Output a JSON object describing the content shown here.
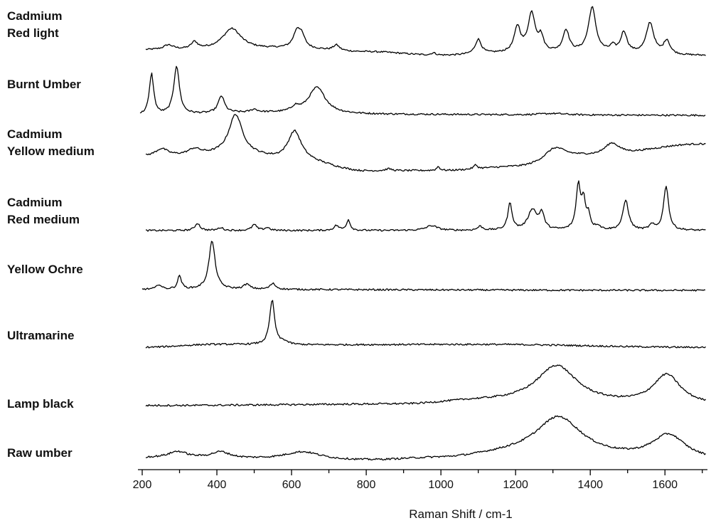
{
  "chart_data": {
    "type": "line",
    "title": "",
    "xlabel": "Raman Shift / cm-1",
    "ylabel": "",
    "xlim": [
      200,
      1710
    ],
    "xticks": [
      200,
      400,
      600,
      800,
      1000,
      1200,
      1400,
      1600
    ],
    "grid": false,
    "legend": "none",
    "series": [
      {
        "name": "Cadmium Red light",
        "label_lines": [
          "Cadmium",
          "Red light"
        ],
        "baseline": [
          [
            200,
            0.12
          ],
          [
            600,
            0.15
          ],
          [
            800,
            0.08
          ],
          [
            1000,
            0.0
          ],
          [
            1200,
            0.05
          ],
          [
            1400,
            0.06
          ],
          [
            1700,
            0.0
          ]
        ],
        "peaks": [
          [
            270,
            0.1,
            15
          ],
          [
            340,
            0.15,
            10
          ],
          [
            440,
            0.45,
            30
          ],
          [
            615,
            0.38,
            12
          ],
          [
            628,
            0.2,
            10
          ],
          [
            720,
            0.12,
            10
          ],
          [
            980,
            0.05,
            8
          ],
          [
            1100,
            0.32,
            10
          ],
          [
            1205,
            0.55,
            10
          ],
          [
            1243,
            0.85,
            12
          ],
          [
            1268,
            0.3,
            8
          ],
          [
            1335,
            0.48,
            10
          ],
          [
            1405,
            0.98,
            12
          ],
          [
            1460,
            0.12,
            8
          ],
          [
            1490,
            0.45,
            10
          ],
          [
            1560,
            0.68,
            12
          ],
          [
            1605,
            0.3,
            10
          ]
        ]
      },
      {
        "name": "Burnt Umber",
        "label_lines": [
          "Burnt Umber"
        ],
        "baseline": [
          [
            200,
            0.0
          ],
          [
            500,
            0.05
          ],
          [
            700,
            0.02
          ],
          [
            1700,
            0.0
          ]
        ],
        "peaks": [
          [
            225,
            0.85,
            7
          ],
          [
            292,
            1.0,
            9
          ],
          [
            412,
            0.35,
            10
          ],
          [
            500,
            0.06,
            10
          ],
          [
            610,
            0.1,
            12
          ],
          [
            668,
            0.55,
            28
          ],
          [
            1300,
            0.03,
            40
          ]
        ]
      },
      {
        "name": "Cadmium Yellow medium",
        "label_lines": [
          "Cadmium",
          "Yellow medium"
        ],
        "baseline": [
          [
            200,
            0.32
          ],
          [
            450,
            0.36
          ],
          [
            620,
            0.22
          ],
          [
            800,
            0.02
          ],
          [
            1000,
            0.03
          ],
          [
            1200,
            0.1
          ],
          [
            1400,
            0.32
          ],
          [
            1700,
            0.58
          ]
        ],
        "peaks": [
          [
            252,
            0.15,
            20
          ],
          [
            340,
            0.12,
            20
          ],
          [
            450,
            0.82,
            22
          ],
          [
            608,
            0.62,
            22
          ],
          [
            860,
            0.04,
            10
          ],
          [
            993,
            0.08,
            5
          ],
          [
            1093,
            0.08,
            6
          ],
          [
            1305,
            0.28,
            35
          ],
          [
            1458,
            0.25,
            25
          ]
        ]
      },
      {
        "name": "Cadmium Red medium",
        "label_lines": [
          "Cadmium",
          "Red medium"
        ],
        "baseline": [
          [
            200,
            0.03
          ],
          [
            1700,
            0.03
          ]
        ],
        "peaks": [
          [
            348,
            0.15,
            8
          ],
          [
            410,
            0.06,
            8
          ],
          [
            500,
            0.12,
            8
          ],
          [
            535,
            0.06,
            8
          ],
          [
            720,
            0.1,
            8
          ],
          [
            752,
            0.22,
            6
          ],
          [
            975,
            0.1,
            18
          ],
          [
            1105,
            0.08,
            8
          ],
          [
            1185,
            0.55,
            7
          ],
          [
            1245,
            0.42,
            14
          ],
          [
            1270,
            0.32,
            8
          ],
          [
            1368,
            0.92,
            7
          ],
          [
            1382,
            0.55,
            6
          ],
          [
            1395,
            0.3,
            6
          ],
          [
            1420,
            0.08,
            8
          ],
          [
            1495,
            0.62,
            9
          ],
          [
            1565,
            0.1,
            8
          ],
          [
            1603,
            0.92,
            8
          ]
        ]
      },
      {
        "name": "Yellow Ochre",
        "label_lines": [
          "Yellow Ochre"
        ],
        "baseline": [
          [
            200,
            0.02
          ],
          [
            1700,
            0.0
          ]
        ],
        "peaks": [
          [
            245,
            0.1,
            7
          ],
          [
            300,
            0.28,
            6
          ],
          [
            387,
            1.0,
            10
          ],
          [
            480,
            0.1,
            10
          ],
          [
            550,
            0.12,
            9
          ]
        ]
      },
      {
        "name": "Ultramarine",
        "label_lines": [
          "Ultramarine"
        ],
        "baseline": [
          [
            200,
            0.0
          ],
          [
            400,
            0.06
          ],
          [
            600,
            0.05
          ],
          [
            1100,
            0.06
          ],
          [
            1700,
            0.0
          ]
        ],
        "peaks": [
          [
            548,
            0.92,
            8
          ],
          [
            580,
            0.06,
            12
          ]
        ]
      },
      {
        "name": "Lamp black",
        "label_lines": [
          "Lamp black"
        ],
        "baseline": [
          [
            200,
            0.0
          ],
          [
            900,
            0.02
          ],
          [
            1100,
            0.08
          ],
          [
            1700,
            0.0
          ]
        ],
        "peaks": [
          [
            1310,
            0.72,
            65
          ],
          [
            1605,
            0.58,
            45
          ]
        ]
      },
      {
        "name": "Raw umber",
        "label_lines": [
          "Raw umber"
        ],
        "baseline": [
          [
            200,
            0.06
          ],
          [
            800,
            0.0
          ],
          [
            1000,
            0.04
          ],
          [
            1200,
            0.12
          ],
          [
            1700,
            0.0
          ]
        ],
        "peaks": [
          [
            295,
            0.12,
            30
          ],
          [
            410,
            0.12,
            30
          ],
          [
            630,
            0.16,
            60
          ],
          [
            1315,
            0.75,
            75
          ],
          [
            1610,
            0.48,
            55
          ]
        ]
      }
    ]
  }
}
